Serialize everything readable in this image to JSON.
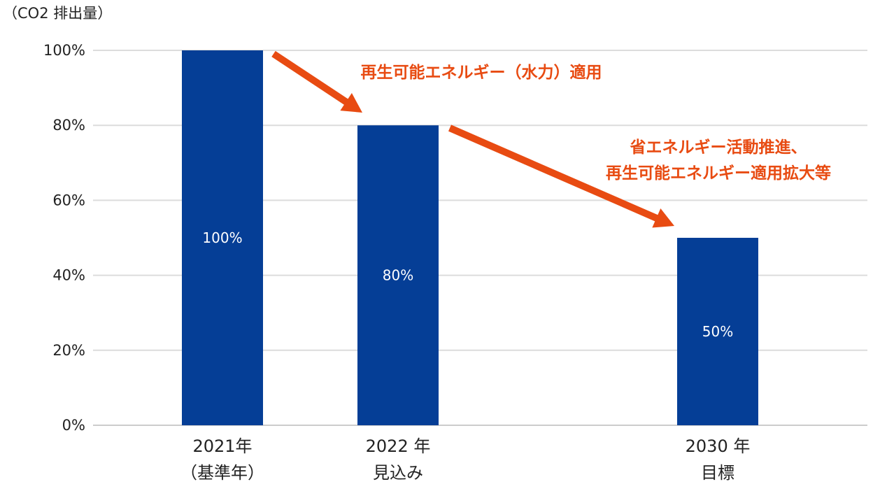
{
  "chart_data": {
    "type": "bar",
    "ylabel": "（CO2 排出量）",
    "ylim": [
      0,
      100
    ],
    "yticks": [
      "0%",
      "20%",
      "40%",
      "60%",
      "80%",
      "100%"
    ],
    "grid": true,
    "categories": [
      [
        "2021年",
        "（基準年）"
      ],
      [
        "2022 年",
        "見込み"
      ],
      [
        "2030 年",
        "目標"
      ]
    ],
    "values": [
      100,
      80,
      50
    ],
    "data_labels": [
      "100%",
      "80%",
      "50%"
    ],
    "annotations": [
      [
        "再生可能エネルギー（水力）適用"
      ],
      [
        "省エネルギー活動推進、",
        "再生可能エネルギー適用拡大等"
      ]
    ]
  },
  "colors": {
    "bar": "#053e96",
    "grid": "#dcdcdc",
    "axis": "#cccccc",
    "arrow": "#e84b12"
  }
}
